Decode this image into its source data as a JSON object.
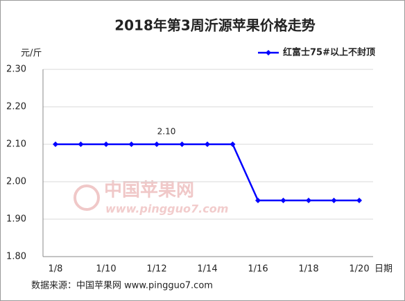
{
  "chart_data": {
    "type": "line",
    "title": "2018年第3周沂源苹果价格走势",
    "y_label": "元/斤",
    "x_label": "日期",
    "categories": [
      "1/8",
      null,
      "1/10",
      null,
      "1/12",
      null,
      "1/14",
      null,
      "1/16",
      null,
      "1/18",
      null,
      "1/20"
    ],
    "series": [
      {
        "name": "红富士75#以上不封顶",
        "color": "#0000ff",
        "values": [
          2.1,
          2.1,
          2.1,
          2.1,
          2.1,
          2.1,
          2.1,
          2.1,
          1.95,
          1.95,
          1.95,
          1.95,
          1.95
        ],
        "value_labels": [
          null,
          null,
          null,
          null,
          "2.10",
          null,
          null,
          null,
          null,
          null,
          null,
          null,
          null
        ]
      }
    ],
    "ylim": [
      1.8,
      2.3
    ],
    "yticks": [
      {
        "value": 1.8,
        "label": "1.80"
      },
      {
        "value": 1.9,
        "label": "1.90"
      },
      {
        "value": 2.0,
        "label": "2.00"
      },
      {
        "value": 2.1,
        "label": "2.10"
      },
      {
        "value": 2.2,
        "label": "2.20"
      },
      {
        "value": 2.3,
        "label": "2.30"
      }
    ],
    "grid": true,
    "legend": "top-right",
    "watermark": [
      "中国苹果网",
      "www.pingguo7.com"
    ],
    "source": "数据来源：中国苹果网 www.pingguo7.com"
  }
}
